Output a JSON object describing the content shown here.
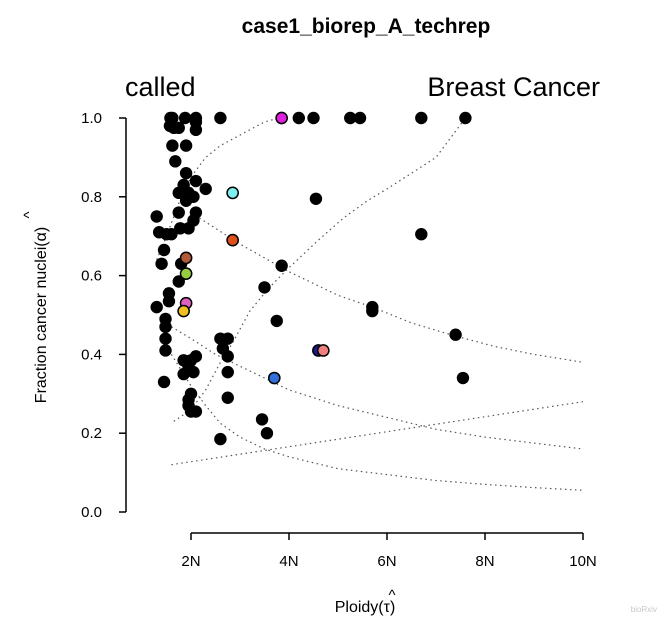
{
  "chart_data": {
    "type": "scatter",
    "title": "case1_biorep_A_techrep",
    "label_left": "called",
    "label_right": "Breast Cancer",
    "xlabel": "Ploidy(",
    "xlabel_symbol": "τ",
    "xlabel_close": ")",
    "ylabel": "Fraction cancer nuclei(",
    "ylabel_symbol": "α",
    "ylabel_close": ")",
    "hat": "^",
    "xlim": [
      1.3,
      10
    ],
    "ylim": [
      0,
      1.0
    ],
    "x_ticks": [
      {
        "value": 2,
        "label": "2N"
      },
      {
        "value": 4,
        "label": "4N"
      },
      {
        "value": 6,
        "label": "6N"
      },
      {
        "value": 8,
        "label": "8N"
      },
      {
        "value": 10,
        "label": "10N"
      }
    ],
    "y_ticks": [
      {
        "value": 0.0,
        "label": "0.0"
      },
      {
        "value": 0.2,
        "label": "0.2"
      },
      {
        "value": 0.4,
        "label": "0.4"
      },
      {
        "value": 0.6,
        "label": "0.6"
      },
      {
        "value": 0.8,
        "label": "0.8"
      },
      {
        "value": 1.0,
        "label": "1.0"
      }
    ],
    "grid": false,
    "points": [
      {
        "x": 1.58,
        "y": 1.0
      },
      {
        "x": 1.62,
        "y": 1.0
      },
      {
        "x": 1.88,
        "y": 1.0
      },
      {
        "x": 2.1,
        "y": 1.0
      },
      {
        "x": 2.1,
        "y": 0.99
      },
      {
        "x": 2.6,
        "y": 1.0
      },
      {
        "x": 4.2,
        "y": 1.0
      },
      {
        "x": 4.5,
        "y": 1.0
      },
      {
        "x": 5.25,
        "y": 1.0
      },
      {
        "x": 5.45,
        "y": 1.0
      },
      {
        "x": 6.7,
        "y": 1.0
      },
      {
        "x": 7.6,
        "y": 1.0
      },
      {
        "x": 1.57,
        "y": 0.98
      },
      {
        "x": 1.65,
        "y": 0.975
      },
      {
        "x": 1.75,
        "y": 0.975
      },
      {
        "x": 2.1,
        "y": 0.97
      },
      {
        "x": 1.62,
        "y": 0.93
      },
      {
        "x": 1.9,
        "y": 0.93
      },
      {
        "x": 1.68,
        "y": 0.89
      },
      {
        "x": 1.9,
        "y": 0.86
      },
      {
        "x": 1.85,
        "y": 0.83
      },
      {
        "x": 2.1,
        "y": 0.84
      },
      {
        "x": 2.3,
        "y": 0.82
      },
      {
        "x": 1.75,
        "y": 0.81
      },
      {
        "x": 1.9,
        "y": 0.79
      },
      {
        "x": 1.95,
        "y": 0.81
      },
      {
        "x": 2.05,
        "y": 0.8
      },
      {
        "x": 1.75,
        "y": 0.76
      },
      {
        "x": 2.1,
        "y": 0.76
      },
      {
        "x": 1.3,
        "y": 0.75
      },
      {
        "x": 1.78,
        "y": 0.72
      },
      {
        "x": 1.95,
        "y": 0.72
      },
      {
        "x": 2.05,
        "y": 0.74
      },
      {
        "x": 1.35,
        "y": 0.71
      },
      {
        "x": 1.5,
        "y": 0.705
      },
      {
        "x": 1.6,
        "y": 0.705
      },
      {
        "x": 1.45,
        "y": 0.665
      },
      {
        "x": 1.8,
        "y": 0.63
      },
      {
        "x": 1.4,
        "y": 0.63
      },
      {
        "x": 1.75,
        "y": 0.585
      },
      {
        "x": 1.55,
        "y": 0.555
      },
      {
        "x": 1.55,
        "y": 0.535
      },
      {
        "x": 1.3,
        "y": 0.52
      },
      {
        "x": 1.48,
        "y": 0.49
      },
      {
        "x": 1.48,
        "y": 0.47
      },
      {
        "x": 1.48,
        "y": 0.44
      },
      {
        "x": 1.48,
        "y": 0.41
      },
      {
        "x": 1.45,
        "y": 0.33
      },
      {
        "x": 1.85,
        "y": 0.385
      },
      {
        "x": 2.0,
        "y": 0.385
      },
      {
        "x": 2.1,
        "y": 0.395
      },
      {
        "x": 1.95,
        "y": 0.37
      },
      {
        "x": 2.05,
        "y": 0.355
      },
      {
        "x": 1.85,
        "y": 0.35
      },
      {
        "x": 2.0,
        "y": 0.3
      },
      {
        "x": 1.95,
        "y": 0.285
      },
      {
        "x": 1.95,
        "y": 0.27
      },
      {
        "x": 2.0,
        "y": 0.255
      },
      {
        "x": 2.1,
        "y": 0.255
      },
      {
        "x": 2.6,
        "y": 0.44
      },
      {
        "x": 2.75,
        "y": 0.44
      },
      {
        "x": 2.65,
        "y": 0.415
      },
      {
        "x": 2.75,
        "y": 0.395
      },
      {
        "x": 2.75,
        "y": 0.355
      },
      {
        "x": 2.75,
        "y": 0.29
      },
      {
        "x": 2.6,
        "y": 0.185
      },
      {
        "x": 3.45,
        "y": 0.235
      },
      {
        "x": 3.55,
        "y": 0.2
      },
      {
        "x": 3.5,
        "y": 0.57
      },
      {
        "x": 3.85,
        "y": 0.625
      },
      {
        "x": 3.75,
        "y": 0.485
      },
      {
        "x": 4.55,
        "y": 0.795
      },
      {
        "x": 5.7,
        "y": 0.52
      },
      {
        "x": 5.7,
        "y": 0.51
      },
      {
        "x": 6.7,
        "y": 0.705
      },
      {
        "x": 7.4,
        "y": 0.45
      },
      {
        "x": 7.55,
        "y": 0.34
      }
    ],
    "highlighted_points": [
      {
        "x": 3.85,
        "y": 1.0,
        "color": "#e020e0"
      },
      {
        "x": 2.85,
        "y": 0.81,
        "color": "#7ff0f0"
      },
      {
        "x": 2.85,
        "y": 0.69,
        "color": "#e0501a"
      },
      {
        "x": 1.9,
        "y": 0.645,
        "color": "#b05a38"
      },
      {
        "x": 1.9,
        "y": 0.605,
        "color": "#98cc40"
      },
      {
        "x": 1.9,
        "y": 0.53,
        "color": "#e060c0"
      },
      {
        "x": 1.85,
        "y": 0.51,
        "color": "#f0c020"
      },
      {
        "x": 3.7,
        "y": 0.34,
        "color": "#3070d8"
      },
      {
        "x": 4.6,
        "y": 0.41,
        "color": "#1a1a88"
      },
      {
        "x": 4.7,
        "y": 0.41,
        "color": "#f08080"
      }
    ],
    "reference_curves": [
      {
        "x": [
          1.3,
          1.5,
          1.8,
          2.0,
          2.3,
          2.6,
          2.9,
          3.2,
          3.5,
          3.8
        ],
        "y": [
          0.64,
          0.7,
          0.8,
          0.85,
          0.9,
          0.93,
          0.95,
          0.97,
          0.99,
          1.0
        ]
      },
      {
        "x": [
          1.65,
          2.0,
          2.3,
          2.6,
          2.85,
          3.2,
          3.6,
          4.0,
          4.6,
          5.1,
          5.6,
          6.0,
          6.5,
          7.0,
          7.6
        ],
        "y": [
          0.23,
          0.26,
          0.31,
          0.38,
          0.43,
          0.51,
          0.57,
          0.62,
          0.69,
          0.745,
          0.79,
          0.82,
          0.86,
          0.9,
          1.0
        ]
      },
      {
        "x": [
          2.0,
          2.5,
          3.0,
          3.5,
          4.0,
          4.5,
          5.0,
          5.7,
          6.5,
          7.3,
          8.2,
          9.0,
          10.0
        ],
        "y": [
          0.76,
          0.72,
          0.68,
          0.645,
          0.61,
          0.58,
          0.55,
          0.52,
          0.48,
          0.45,
          0.42,
          0.4,
          0.38
        ]
      },
      {
        "x": [
          1.6,
          2.0,
          2.5,
          3.0,
          3.5,
          4.0,
          4.5,
          5.0,
          5.5,
          6.0,
          7.0,
          8.0,
          9.0,
          10.0
        ],
        "y": [
          0.47,
          0.44,
          0.4,
          0.37,
          0.34,
          0.31,
          0.29,
          0.27,
          0.255,
          0.24,
          0.21,
          0.19,
          0.175,
          0.16
        ]
      },
      {
        "x": [
          1.6,
          2.0,
          2.3,
          2.6,
          3.0,
          3.5,
          4.0,
          4.5,
          5.0,
          6.0,
          7.0,
          8.0,
          9.0,
          10.0
        ],
        "y": [
          0.4,
          0.32,
          0.27,
          0.225,
          0.19,
          0.16,
          0.14,
          0.125,
          0.11,
          0.095,
          0.08,
          0.07,
          0.062,
          0.055
        ]
      },
      {
        "x": [
          1.6,
          10.0
        ],
        "y": [
          0.12,
          0.28
        ]
      }
    ]
  },
  "watermark": "bioRxiv"
}
